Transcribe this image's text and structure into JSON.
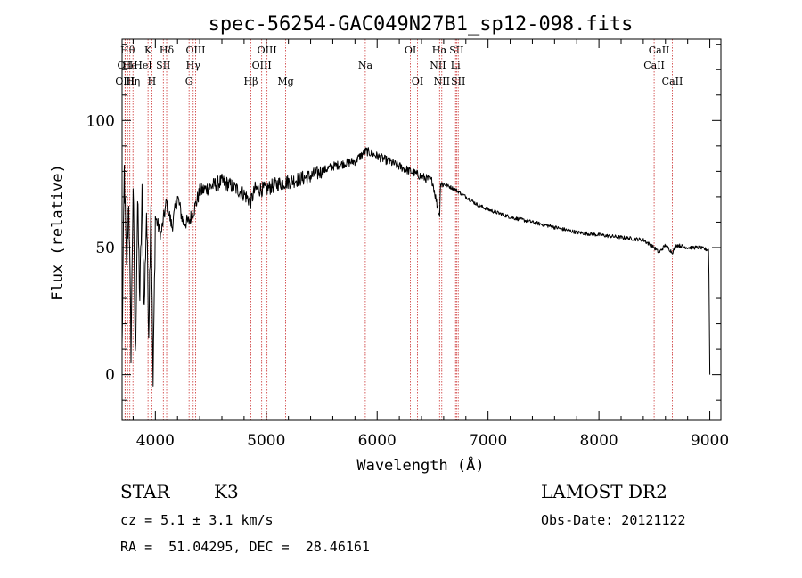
{
  "chart_data": {
    "type": "line",
    "title": "spec-56254-GAC049N27B1_sp12-098.fits",
    "xlabel": "Wavelength (Å)",
    "ylabel": "Flux (relative)",
    "xlim": [
      3700,
      9100
    ],
    "ylim": [
      -18,
      132
    ],
    "xticks": [
      4000,
      5000,
      6000,
      7000,
      8000,
      9000
    ],
    "xtick_labels": [
      "4000",
      "5000",
      "6000",
      "7000",
      "8000",
      "9000"
    ],
    "yticks": [
      0,
      50,
      100
    ],
    "ytick_labels": [
      "0",
      "50",
      "100"
    ],
    "grid": false,
    "line_color": "#000000",
    "marker_color": "#cc3333",
    "series": [
      {
        "name": "flux",
        "x": [
          3700,
          3720,
          3740,
          3760,
          3780,
          3800,
          3820,
          3840,
          3860,
          3880,
          3900,
          3920,
          3940,
          3960,
          3980,
          4000,
          4050,
          4100,
          4150,
          4200,
          4250,
          4300,
          4350,
          4400,
          4500,
          4600,
          4700,
          4800,
          4861,
          4900,
          5000,
          5100,
          5200,
          5300,
          5400,
          5500,
          5600,
          5700,
          5800,
          5850,
          5900,
          5950,
          6000,
          6100,
          6200,
          6300,
          6400,
          6500,
          6563,
          6570,
          6600,
          6700,
          6800,
          6900,
          7000,
          7200,
          7400,
          7600,
          7800,
          8000,
          8200,
          8400,
          8498,
          8542,
          8600,
          8662,
          8700,
          8800,
          8900,
          8990,
          9000
        ],
        "y": [
          10,
          80,
          40,
          70,
          10,
          75,
          5,
          68,
          30,
          70,
          25,
          65,
          18,
          70,
          -5,
          62,
          55,
          68,
          58,
          70,
          60,
          60,
          65,
          72,
          74,
          76,
          74,
          71,
          68,
          73,
          73,
          75,
          76,
          77,
          78,
          80,
          82,
          83,
          84,
          86,
          88,
          87,
          86,
          84,
          82,
          80,
          78,
          76,
          62,
          75,
          75,
          73,
          70,
          67,
          65,
          62,
          60,
          58,
          56,
          55,
          54,
          53,
          50,
          48,
          51,
          48,
          51,
          50,
          50,
          49,
          0
        ]
      }
    ],
    "lines": [
      {
        "label": "OII",
        "x": 3727,
        "row": 1
      },
      {
        "label": "OIII",
        "x": 3727,
        "row": 2
      },
      {
        "label": "Hθ",
        "x": 3750,
        "row": 0
      },
      {
        "label": "He",
        "x": 3770,
        "row": 1
      },
      {
        "label": "Hη",
        "x": 3798,
        "row": 2
      },
      {
        "label": "HeI",
        "x": 3889,
        "row": 1
      },
      {
        "label": "K",
        "x": 3934,
        "row": 0
      },
      {
        "label": "H",
        "x": 3969,
        "row": 2
      },
      {
        "label": "SII",
        "x": 4072,
        "row": 1
      },
      {
        "label": "Hδ",
        "x": 4102,
        "row": 0
      },
      {
        "label": "G",
        "x": 4304,
        "row": 2
      },
      {
        "label": "OIII",
        "x": 4363,
        "row": 0
      },
      {
        "label": "Hγ",
        "x": 4341,
        "row": 1
      },
      {
        "label": "Hβ",
        "x": 4861,
        "row": 2
      },
      {
        "label": "OIII",
        "x": 4959,
        "row": 1
      },
      {
        "label": "OIII",
        "x": 5007,
        "row": 0
      },
      {
        "label": "Mg",
        "x": 5175,
        "row": 2
      },
      {
        "label": "Na",
        "x": 5893,
        "row": 1
      },
      {
        "label": "OI",
        "x": 6300,
        "row": 0
      },
      {
        "label": "OI",
        "x": 6364,
        "row": 2
      },
      {
        "label": "NII",
        "x": 6548,
        "row": 1
      },
      {
        "label": "Hα",
        "x": 6563,
        "row": 0
      },
      {
        "label": "NII",
        "x": 6583,
        "row": 2
      },
      {
        "label": "Li",
        "x": 6707,
        "row": 1
      },
      {
        "label": "SII",
        "x": 6716,
        "row": 0
      },
      {
        "label": "SII",
        "x": 6731,
        "row": 2
      },
      {
        "label": "CaII",
        "x": 8498,
        "row": 1
      },
      {
        "label": "CaII",
        "x": 8542,
        "row": 0
      },
      {
        "label": "CaII",
        "x": 8662,
        "row": 2
      }
    ]
  },
  "info": {
    "class_label": "STAR",
    "subclass": "K3",
    "survey": "LAMOST DR2",
    "cz": "cz = 5.1 ± 3.1 km/s",
    "obs_date": "Obs-Date: 20121122",
    "coords": "RA =  51.04295, DEC =  28.46161"
  }
}
